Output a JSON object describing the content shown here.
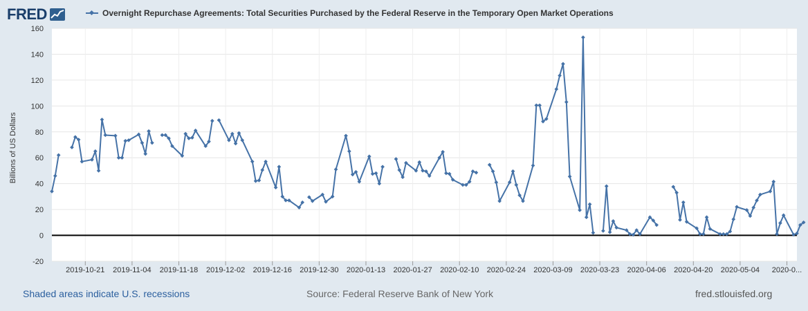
{
  "header": {
    "logo_text": "FRED",
    "legend_label": "Overnight Repurchase Agreements: Total Securities Purchased by the Federal Reserve in the Temporary Open Market Operations"
  },
  "footer": {
    "recessions_link": "Shaded areas indicate U.S. recessions",
    "source": "Source: Federal Reserve Bank of New York",
    "site": "fred.stlouisfed.org"
  },
  "colors": {
    "series": "#4572a7",
    "background": "#e1e9f0",
    "plot_bg": "#ffffff",
    "zero_line": "#000000"
  },
  "chart_data": {
    "type": "line",
    "title": "Overnight Repurchase Agreements: Total Securities Purchased by the Federal Reserve in the Temporary Open Market Operations",
    "ylabel": "Billions of US Dollars",
    "ylim": [
      -20,
      160
    ],
    "yticks": [
      -20,
      0,
      20,
      40,
      60,
      80,
      100,
      120,
      140,
      160
    ],
    "xlim": [
      "2019-10-11",
      "2020-05-21"
    ],
    "xticks": [
      "2019-10-21",
      "2019-11-04",
      "2019-11-18",
      "2019-12-02",
      "2019-12-16",
      "2019-12-30",
      "2020-01-13",
      "2020-01-27",
      "2020-02-10",
      "2020-02-24",
      "2020-03-09",
      "2020-03-23",
      "2020-04-06",
      "2020-04-20",
      "2020-05-04",
      "2020-05-18"
    ],
    "xtick_labels": [
      "2019-10-21",
      "2019-11-04",
      "2019-11-18",
      "2019-12-02",
      "2019-12-16",
      "2019-12-30",
      "2020-01-13",
      "2020-01-27",
      "2020-02-10",
      "2020-02-24",
      "2020-03-09",
      "2020-03-23",
      "2020-04-06",
      "2020-04-20",
      "2020-05-04",
      "2020-0..."
    ],
    "grid": true,
    "series": [
      {
        "segments": [
          [
            [
              "2019-10-11",
              34
            ],
            [
              "2019-10-12",
              46
            ],
            [
              "2019-10-13",
              62
            ]
          ],
          [
            [
              "2019-10-17",
              68
            ],
            [
              "2019-10-18",
              76
            ],
            [
              "2019-10-19",
              74
            ],
            [
              "2019-10-20",
              57
            ],
            [
              "2019-10-23",
              58.5
            ],
            [
              "2019-10-24",
              65
            ],
            [
              "2019-10-25",
              50
            ],
            [
              "2019-10-26",
              89.5
            ],
            [
              "2019-10-27",
              77.5
            ],
            [
              "2019-10-30",
              77
            ],
            [
              "2019-10-31",
              60
            ],
            [
              "2019-11-01",
              60
            ],
            [
              "2019-11-02",
              73
            ],
            [
              "2019-11-03",
              73.5
            ],
            [
              "2019-11-06",
              78
            ],
            [
              "2019-11-07",
              71.5
            ],
            [
              "2019-11-08",
              63
            ],
            [
              "2019-11-09",
              80.5
            ],
            [
              "2019-11-10",
              71.5
            ]
          ],
          [
            [
              "2019-11-13",
              77.5
            ],
            [
              "2019-11-14",
              77.5
            ],
            [
              "2019-11-15",
              75
            ],
            [
              "2019-11-16",
              69
            ],
            [
              "2019-11-19",
              61.5
            ],
            [
              "2019-11-20",
              78.5
            ],
            [
              "2019-11-21",
              75
            ],
            [
              "2019-11-22",
              75.5
            ],
            [
              "2019-11-23",
              81
            ],
            [
              "2019-11-26",
              69
            ],
            [
              "2019-11-27",
              72.5
            ],
            [
              "2019-11-28",
              88.5
            ]
          ],
          [
            [
              "2019-11-30",
              89
            ],
            [
              "2019-12-03",
              73.5
            ],
            [
              "2019-12-04",
              78.5
            ],
            [
              "2019-12-05",
              71
            ],
            [
              "2019-12-06",
              79
            ],
            [
              "2019-12-07",
              73.5
            ],
            [
              "2019-12-10",
              57
            ],
            [
              "2019-12-11",
              42
            ],
            [
              "2019-12-12",
              42.5
            ],
            [
              "2019-12-13",
              50.5
            ],
            [
              "2019-12-14",
              57
            ],
            [
              "2019-12-17",
              37
            ],
            [
              "2019-12-18",
              53
            ],
            [
              "2019-12-19",
              30
            ],
            [
              "2019-12-20",
              27
            ],
            [
              "2019-12-21",
              27
            ],
            [
              "2019-12-24",
              21.5
            ],
            [
              "2019-12-25",
              25.5
            ]
          ],
          [
            [
              "2019-12-27",
              29.5
            ],
            [
              "2019-12-28",
              26.5
            ],
            [
              "2019-12-31",
              31.5
            ],
            [
              "2020-01-01",
              26
            ],
            [
              "2020-01-03",
              30
            ],
            [
              "2020-01-04",
              51
            ],
            [
              "2020-01-07",
              77
            ],
            [
              "2020-01-08",
              65
            ],
            [
              "2020-01-09",
              47
            ],
            [
              "2020-01-10",
              49
            ],
            [
              "2020-01-11",
              41.5
            ],
            [
              "2020-01-14",
              61
            ],
            [
              "2020-01-15",
              47.5
            ],
            [
              "2020-01-16",
              48
            ],
            [
              "2020-01-17",
              40
            ],
            [
              "2020-01-18",
              53
            ]
          ],
          [
            [
              "2020-01-22",
              59
            ],
            [
              "2020-01-23",
              50.5
            ],
            [
              "2020-01-24",
              45
            ],
            [
              "2020-01-25",
              56
            ],
            [
              "2020-01-28",
              50
            ],
            [
              "2020-01-29",
              56.5
            ],
            [
              "2020-01-30",
              50
            ],
            [
              "2020-01-31",
              49.5
            ],
            [
              "2020-02-01",
              46
            ],
            [
              "2020-02-04",
              60
            ],
            [
              "2020-02-05",
              64.5
            ],
            [
              "2020-02-06",
              48
            ],
            [
              "2020-02-07",
              47.5
            ],
            [
              "2020-02-08",
              43
            ],
            [
              "2020-02-11",
              39
            ],
            [
              "2020-02-12",
              39
            ],
            [
              "2020-02-13",
              41.5
            ],
            [
              "2020-02-14",
              49.5
            ],
            [
              "2020-02-15",
              48.5
            ]
          ],
          [
            [
              "2020-02-19",
              54.5
            ],
            [
              "2020-02-20",
              49.5
            ],
            [
              "2020-02-21",
              41
            ],
            [
              "2020-02-22",
              26.5
            ],
            [
              "2020-02-25",
              41
            ],
            [
              "2020-02-26",
              49.5
            ],
            [
              "2020-02-27",
              39
            ],
            [
              "2020-02-28",
              31
            ],
            [
              "2020-02-29",
              26.5
            ],
            [
              "2020-03-03",
              54
            ],
            [
              "2020-03-04",
              100.5
            ],
            [
              "2020-03-05",
              100.5
            ],
            [
              "2020-03-06",
              88
            ],
            [
              "2020-03-07",
              90
            ],
            [
              "2020-03-10",
              113
            ],
            [
              "2020-03-11",
              123.5
            ],
            [
              "2020-03-12",
              132.5
            ],
            [
              "2020-03-13",
              103
            ],
            [
              "2020-03-14",
              45.5
            ],
            [
              "2020-03-17",
              19.5
            ],
            [
              "2020-03-18",
              153
            ],
            [
              "2020-03-19",
              14
            ],
            [
              "2020-03-20",
              24
            ],
            [
              "2020-03-21",
              2
            ]
          ],
          [
            [
              "2020-03-24",
              3.5
            ],
            [
              "2020-03-25",
              38
            ],
            [
              "2020-03-26",
              2.5
            ],
            [
              "2020-03-27",
              11
            ],
            [
              "2020-03-28",
              6
            ],
            [
              "2020-03-31",
              4
            ],
            [
              "2020-04-01",
              1
            ],
            [
              "2020-04-02",
              0.5
            ],
            [
              "2020-04-03",
              4
            ],
            [
              "2020-04-04",
              1
            ],
            [
              "2020-04-07",
              14
            ],
            [
              "2020-04-08",
              11.5
            ],
            [
              "2020-04-09",
              8
            ]
          ],
          [
            [
              "2020-04-14",
              37.5
            ],
            [
              "2020-04-15",
              33
            ],
            [
              "2020-04-16",
              12
            ],
            [
              "2020-04-17",
              25.5
            ],
            [
              "2020-04-18",
              10.5
            ],
            [
              "2020-04-21",
              5.5
            ],
            [
              "2020-04-22",
              1
            ],
            [
              "2020-04-23",
              1
            ],
            [
              "2020-04-24",
              14
            ],
            [
              "2020-04-25",
              5
            ],
            [
              "2020-04-28",
              1
            ],
            [
              "2020-04-29",
              1
            ],
            [
              "2020-04-30",
              1
            ],
            [
              "2020-05-01",
              3
            ],
            [
              "2020-05-02",
              12.5
            ],
            [
              "2020-05-03",
              22
            ],
            [
              "2020-05-06",
              19.5
            ],
            [
              "2020-05-07",
              15
            ],
            [
              "2020-05-08",
              21.5
            ],
            [
              "2020-05-09",
              27
            ],
            [
              "2020-05-10",
              31.5
            ],
            [
              "2020-05-13",
              34
            ],
            [
              "2020-05-14",
              41.5
            ],
            [
              "2020-05-15",
              1
            ],
            [
              "2020-05-16",
              9.5
            ],
            [
              "2020-05-17",
              15.5
            ],
            [
              "2020-05-20",
              0.5
            ],
            [
              "2020-05-21",
              1.5
            ],
            [
              "2020-05-22",
              8
            ],
            [
              "2020-05-23",
              10
            ]
          ]
        ]
      }
    ]
  }
}
